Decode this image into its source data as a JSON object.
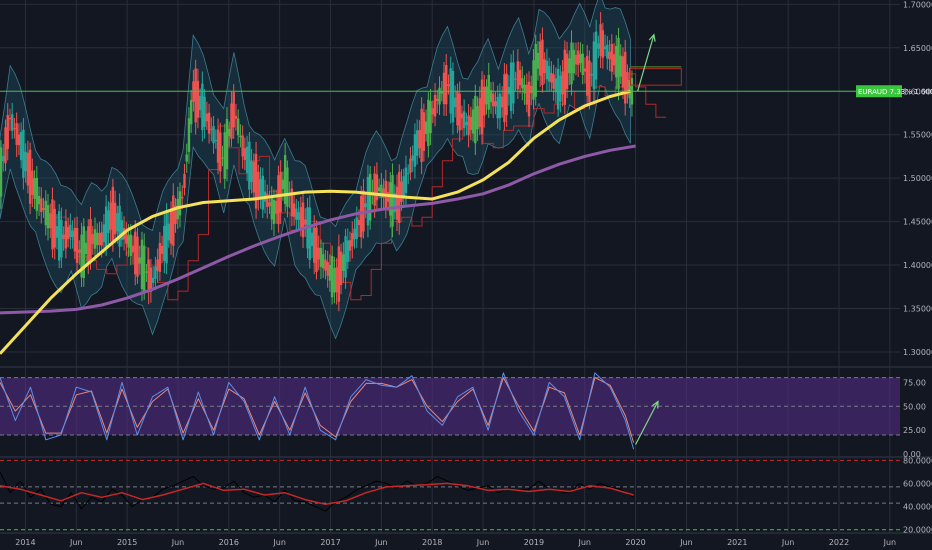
{
  "chart_data": {
    "type": "line",
    "symbol_tag": "EURAUD 7.33% 1.60095",
    "colors": {
      "background": "#131722",
      "grid": "#2a2e39",
      "candle_up": "#26a69a",
      "candle_up_alt": "#4caf50",
      "candle_down": "#ef5350",
      "ma_fast": "#f4e25a",
      "ma_slow": "#8e5aa8",
      "cloud_fill": "#1e4a5a",
      "ichimoku_green": "#5a8f2c",
      "ichimoku_red": "#b02a2a",
      "support_line": "#39c53c",
      "projection_arrow": "#7fd88a",
      "stoch_band": "#5a2d8c",
      "stoch_k": "#5b8ee6",
      "stoch_d": "#e9897a",
      "rsi_line": "#c62828",
      "rsi_black": "#000000",
      "level_line": "#787b86"
    },
    "price_panel": {
      "ylim": [
        1.285,
        1.705
      ],
      "y_ticks": [
        "1.70000",
        "1.65000",
        "1.60000",
        "1.55000",
        "1.50000",
        "1.45000",
        "1.40000",
        "1.35000",
        "1.30000"
      ],
      "support_level": 1.6,
      "series": [
        {
          "name": "",
          "style": "ma_fast",
          "x": [
            2013.75,
            2014.0,
            2014.25,
            2014.5,
            2014.75,
            2015.0,
            2015.25,
            2015.5,
            2015.75,
            2016.0,
            2016.25,
            2016.5,
            2016.75,
            2017.0,
            2017.25,
            2017.5,
            2017.75,
            2018.0,
            2018.25,
            2018.5,
            2018.75,
            2019.0,
            2019.25,
            2019.5,
            2019.75,
            2019.95
          ],
          "values": [
            1.298,
            1.33,
            1.362,
            1.39,
            1.415,
            1.44,
            1.456,
            1.466,
            1.472,
            1.474,
            1.476,
            1.48,
            1.484,
            1.485,
            1.484,
            1.481,
            1.478,
            1.476,
            1.484,
            1.498,
            1.518,
            1.546,
            1.567,
            1.583,
            1.594,
            1.6
          ]
        },
        {
          "name": "",
          "style": "ma_slow",
          "x": [
            2013.75,
            2014.0,
            2014.25,
            2014.5,
            2014.75,
            2015.0,
            2015.25,
            2015.5,
            2015.75,
            2016.0,
            2016.25,
            2016.5,
            2016.75,
            2017.0,
            2017.25,
            2017.5,
            2017.75,
            2018.0,
            2018.25,
            2018.5,
            2018.75,
            2019.0,
            2019.25,
            2019.5,
            2019.75,
            2020.0
          ],
          "values": [
            1.345,
            1.346,
            1.347,
            1.349,
            1.354,
            1.362,
            1.372,
            1.384,
            1.397,
            1.41,
            1.422,
            1.433,
            1.443,
            1.452,
            1.459,
            1.464,
            1.468,
            1.471,
            1.476,
            1.482,
            1.492,
            1.505,
            1.516,
            1.525,
            1.532,
            1.537
          ]
        },
        {
          "name": "",
          "style": "price",
          "x": [
            2013.75,
            2013.85,
            2013.95,
            2014.05,
            2014.15,
            2014.25,
            2014.35,
            2014.45,
            2014.55,
            2014.65,
            2014.75,
            2014.85,
            2014.95,
            2015.05,
            2015.15,
            2015.25,
            2015.35,
            2015.45,
            2015.55,
            2015.65,
            2015.75,
            2015.85,
            2015.95,
            2016.05,
            2016.15,
            2016.25,
            2016.35,
            2016.45,
            2016.55,
            2016.65,
            2016.75,
            2016.85,
            2016.95,
            2017.05,
            2017.15,
            2017.25,
            2017.35,
            2017.45,
            2017.55,
            2017.65,
            2017.75,
            2017.85,
            2017.95,
            2018.05,
            2018.15,
            2018.25,
            2018.35,
            2018.45,
            2018.55,
            2018.65,
            2018.75,
            2018.85,
            2018.95,
            2019.05,
            2019.15,
            2019.25,
            2019.35,
            2019.45,
            2019.55,
            2019.65,
            2019.75,
            2019.85,
            2019.95
          ],
          "values": [
            1.5,
            1.57,
            1.54,
            1.5,
            1.47,
            1.45,
            1.43,
            1.44,
            1.41,
            1.43,
            1.43,
            1.46,
            1.44,
            1.42,
            1.4,
            1.38,
            1.42,
            1.45,
            1.48,
            1.6,
            1.58,
            1.55,
            1.52,
            1.58,
            1.53,
            1.5,
            1.48,
            1.46,
            1.5,
            1.46,
            1.45,
            1.42,
            1.4,
            1.38,
            1.41,
            1.44,
            1.47,
            1.49,
            1.48,
            1.47,
            1.5,
            1.54,
            1.56,
            1.59,
            1.61,
            1.58,
            1.56,
            1.57,
            1.6,
            1.58,
            1.6,
            1.62,
            1.59,
            1.64,
            1.62,
            1.6,
            1.63,
            1.64,
            1.61,
            1.66,
            1.64,
            1.63,
            1.6
          ]
        }
      ]
    },
    "stoch_panel": {
      "ylim": [
        -2,
        88
      ],
      "y_ticks": [
        "75.00",
        "50.00",
        "25.00",
        "0.00"
      ],
      "band": [
        20,
        80
      ],
      "series": [
        {
          "name": "",
          "style": "stoch_k",
          "x": [
            2013.75,
            2013.9,
            2014.05,
            2014.2,
            2014.35,
            2014.5,
            2014.65,
            2014.8,
            2014.95,
            2015.1,
            2015.25,
            2015.4,
            2015.55,
            2015.7,
            2015.85,
            2016.0,
            2016.15,
            2016.3,
            2016.45,
            2016.6,
            2016.75,
            2016.9,
            2017.05,
            2017.2,
            2017.35,
            2017.5,
            2017.65,
            2017.8,
            2017.95,
            2018.1,
            2018.25,
            2018.4,
            2018.55,
            2018.7,
            2018.85,
            2019.0,
            2019.15,
            2019.3,
            2019.45,
            2019.6,
            2019.75,
            2019.9,
            2019.98
          ],
          "values": [
            80,
            35,
            70,
            15,
            20,
            70,
            65,
            15,
            75,
            20,
            60,
            70,
            15,
            65,
            20,
            75,
            55,
            15,
            60,
            20,
            70,
            25,
            15,
            60,
            78,
            72,
            70,
            82,
            45,
            30,
            60,
            70,
            25,
            85,
            45,
            20,
            75,
            60,
            15,
            85,
            70,
            35,
            5
          ]
        },
        {
          "name": "",
          "style": "stoch_d",
          "x": [
            2013.75,
            2013.9,
            2014.05,
            2014.2,
            2014.35,
            2014.5,
            2014.65,
            2014.8,
            2014.95,
            2015.1,
            2015.25,
            2015.4,
            2015.55,
            2015.7,
            2015.85,
            2016.0,
            2016.15,
            2016.3,
            2016.45,
            2016.6,
            2016.75,
            2016.9,
            2017.05,
            2017.2,
            2017.35,
            2017.5,
            2017.65,
            2017.8,
            2017.95,
            2018.1,
            2018.25,
            2018.4,
            2018.55,
            2018.7,
            2018.85,
            2019.0,
            2019.15,
            2019.3,
            2019.45,
            2019.6,
            2019.75,
            2019.9,
            2019.98
          ],
          "values": [
            75,
            45,
            62,
            22,
            22,
            62,
            66,
            22,
            68,
            28,
            55,
            68,
            22,
            58,
            25,
            68,
            58,
            20,
            55,
            25,
            64,
            30,
            18,
            55,
            74,
            74,
            70,
            78,
            50,
            34,
            55,
            68,
            30,
            80,
            50,
            24,
            70,
            64,
            20,
            80,
            72,
            40,
            12
          ]
        }
      ]
    },
    "rsi_panel": {
      "ylim": [
        18,
        82
      ],
      "y_ticks": [
        "80.00000",
        "60.00000",
        "40.00000",
        "20.00000"
      ],
      "levels": [
        80,
        57,
        43,
        20
      ],
      "series": [
        {
          "name": "",
          "style": "rsi_line",
          "x": [
            2013.75,
            2013.95,
            2014.15,
            2014.35,
            2014.55,
            2014.75,
            2014.95,
            2015.15,
            2015.35,
            2015.55,
            2015.75,
            2015.95,
            2016.15,
            2016.35,
            2016.55,
            2016.75,
            2016.95,
            2017.15,
            2017.35,
            2017.55,
            2017.75,
            2017.95,
            2018.15,
            2018.35,
            2018.55,
            2018.75,
            2018.95,
            2019.15,
            2019.35,
            2019.55,
            2019.75,
            2019.98
          ],
          "values": [
            58,
            55,
            50,
            45,
            52,
            48,
            52,
            46,
            50,
            55,
            60,
            54,
            55,
            50,
            52,
            46,
            42,
            45,
            52,
            57,
            58,
            59,
            60,
            58,
            54,
            55,
            53,
            55,
            53,
            58,
            56,
            50
          ]
        },
        {
          "name": "",
          "style": "rsi_black",
          "x": [
            2013.75,
            2013.85,
            2013.95,
            2014.05,
            2014.15,
            2014.25,
            2014.35,
            2014.45,
            2014.55,
            2014.65,
            2014.75,
            2014.85,
            2014.95,
            2015.05,
            2015.15,
            2015.25,
            2015.35,
            2015.45,
            2015.55,
            2015.65,
            2015.75,
            2015.85,
            2015.95,
            2016.05,
            2016.15,
            2016.25,
            2016.35,
            2016.45,
            2016.55,
            2016.65,
            2016.75,
            2016.85,
            2016.95,
            2017.05,
            2017.15,
            2017.25,
            2017.35,
            2017.45,
            2017.55,
            2017.65,
            2017.75,
            2017.85,
            2017.95,
            2018.05,
            2018.15,
            2018.25,
            2018.35,
            2018.45,
            2018.55,
            2018.65,
            2018.75,
            2018.85,
            2018.95,
            2019.05,
            2019.15,
            2019.25,
            2019.35,
            2019.45,
            2019.55,
            2019.65,
            2019.75,
            2019.85,
            2019.98
          ],
          "values": [
            70,
            52,
            62,
            48,
            55,
            42,
            40,
            52,
            38,
            48,
            44,
            55,
            50,
            40,
            46,
            48,
            55,
            58,
            62,
            66,
            58,
            55,
            56,
            62,
            52,
            48,
            50,
            44,
            54,
            45,
            44,
            40,
            36,
            44,
            48,
            54,
            58,
            62,
            60,
            56,
            62,
            58,
            60,
            66,
            62,
            58,
            54,
            56,
            58,
            52,
            56,
            54,
            55,
            62,
            55,
            53,
            52,
            60,
            55,
            60,
            57,
            55,
            48
          ]
        }
      ]
    },
    "x_ticks": [
      {
        "x": 2014.0,
        "label": "2014"
      },
      {
        "x": 2014.5,
        "label": "Jun"
      },
      {
        "x": 2015.0,
        "label": "2015"
      },
      {
        "x": 2015.5,
        "label": "Jun"
      },
      {
        "x": 2016.0,
        "label": "2016"
      },
      {
        "x": 2016.5,
        "label": "Jun"
      },
      {
        "x": 2017.0,
        "label": "2017"
      },
      {
        "x": 2017.5,
        "label": "Jun"
      },
      {
        "x": 2018.0,
        "label": "2018"
      },
      {
        "x": 2018.5,
        "label": "Jun"
      },
      {
        "x": 2019.0,
        "label": "2019"
      },
      {
        "x": 2019.5,
        "label": "Jun"
      },
      {
        "x": 2020.0,
        "label": "2020"
      },
      {
        "x": 2020.5,
        "label": "Jun"
      },
      {
        "x": 2021.0,
        "label": "2021"
      },
      {
        "x": 2021.5,
        "label": "Jun"
      },
      {
        "x": 2022.0,
        "label": "2022"
      },
      {
        "x": 2022.5,
        "label": "Jun"
      }
    ],
    "xlim": [
      2013.75,
      2022.6
    ],
    "grid": true
  }
}
